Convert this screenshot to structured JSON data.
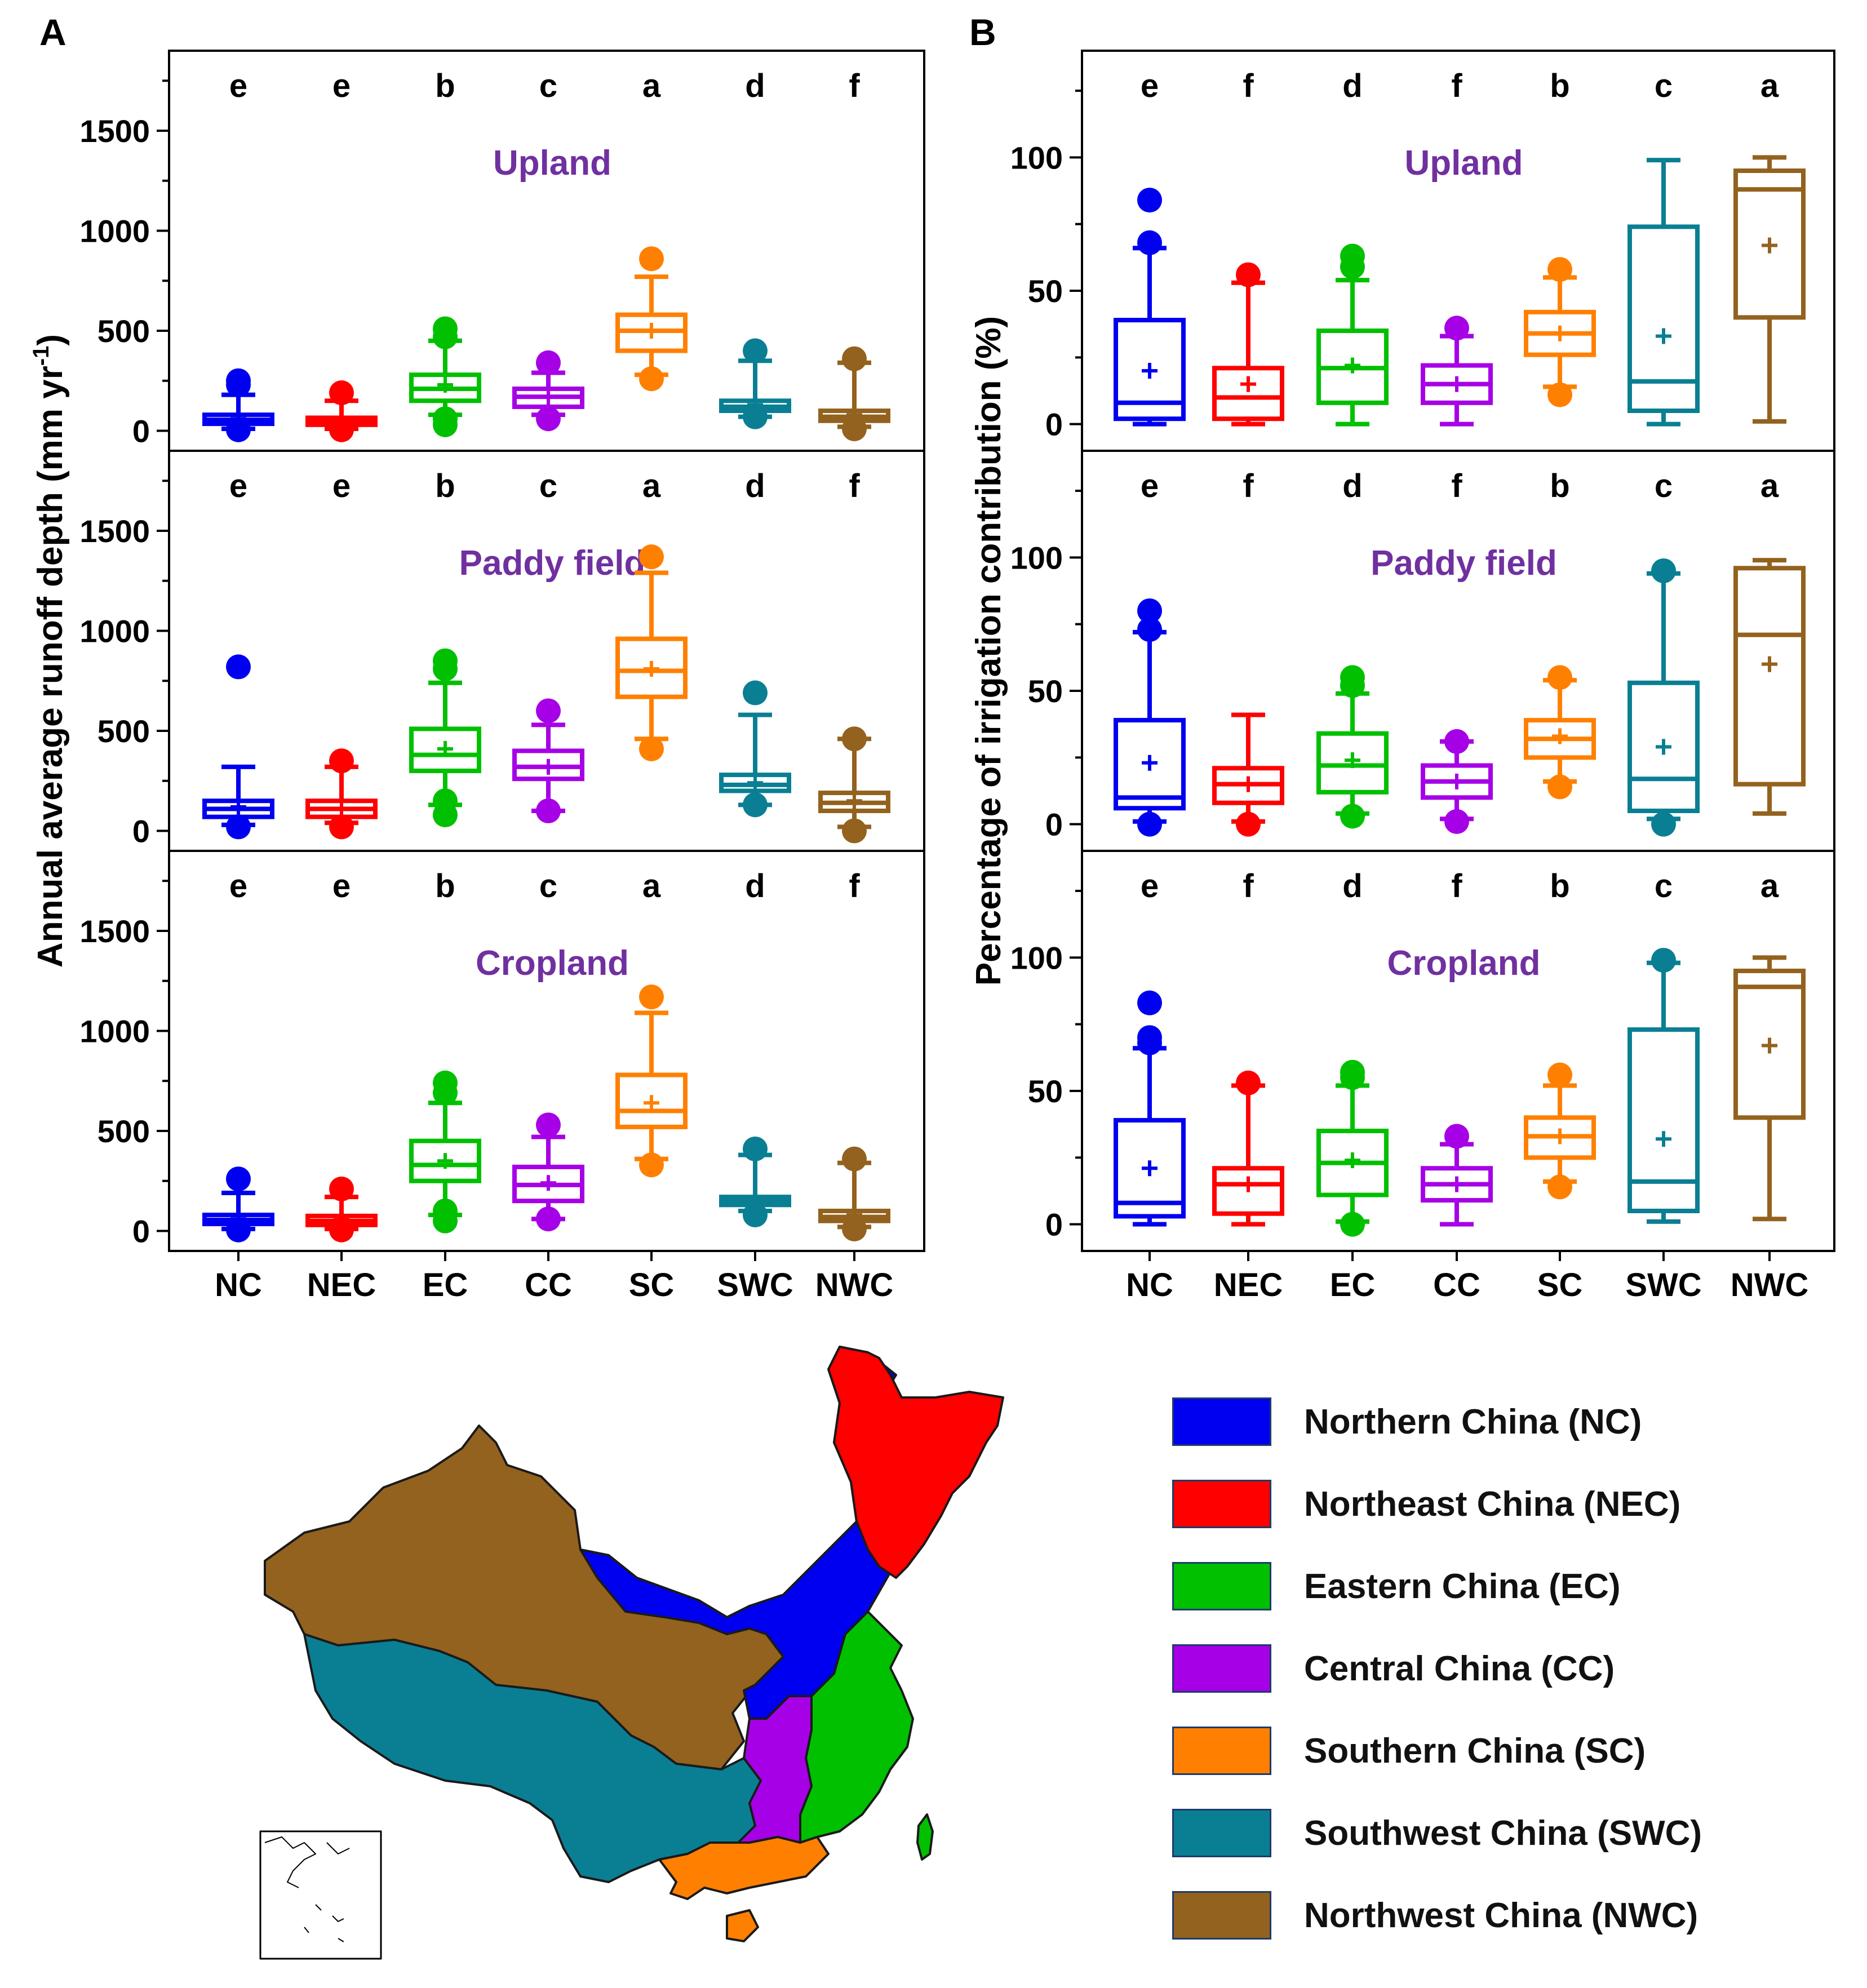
{
  "chart_data": [
    {
      "panel": "A",
      "type": "box",
      "ylabel": "Annual average runoff depth (mm yr",
      "ylabel_sup": "-1",
      "ylabel_tail": ")",
      "categories": [
        "NC",
        "NEC",
        "EC",
        "CC",
        "SC",
        "SWC",
        "NWC"
      ],
      "ylim": [
        -100,
        1900
      ],
      "yticks": [
        0,
        500,
        1000,
        1500
      ],
      "subplots": [
        {
          "title": "Upland",
          "letters": [
            "e",
            "e",
            "b",
            "c",
            "a",
            "d",
            "f"
          ],
          "boxes": [
            {
              "min": 10,
              "q1": 35,
              "median": 55,
              "q3": 80,
              "max": 180,
              "mean": 60,
              "outliers": [
                5,
                230,
                250
              ]
            },
            {
              "min": 10,
              "q1": 30,
              "median": 45,
              "q3": 65,
              "max": 150,
              "mean": 55,
              "outliers": [
                5,
                190
              ]
            },
            {
              "min": 80,
              "q1": 150,
              "median": 210,
              "q3": 280,
              "max": 450,
              "mean": 230,
              "outliers": [
                30,
                60,
                470,
                510
              ]
            },
            {
              "min": 80,
              "q1": 120,
              "median": 170,
              "q3": 210,
              "max": 290,
              "mean": 170,
              "outliers": [
                60,
                340
              ]
            },
            {
              "min": 280,
              "q1": 400,
              "median": 500,
              "q3": 580,
              "max": 770,
              "mean": 500,
              "outliers": [
                260,
                860
              ]
            },
            {
              "min": 70,
              "q1": 100,
              "median": 120,
              "q3": 150,
              "max": 350,
              "mean": 130,
              "outliers": [
                70,
                400
              ]
            },
            {
              "min": 20,
              "q1": 50,
              "median": 70,
              "q3": 100,
              "max": 340,
              "mean": 80,
              "outliers": [
                10,
                360
              ]
            }
          ]
        },
        {
          "title": "Paddy field",
          "letters": [
            "e",
            "e",
            "b",
            "c",
            "a",
            "d",
            "f"
          ],
          "boxes": [
            {
              "min": 30,
              "q1": 70,
              "median": 110,
              "q3": 150,
              "max": 320,
              "mean": 120,
              "outliers": [
                20,
                820
              ]
            },
            {
              "min": 40,
              "q1": 70,
              "median": 110,
              "q3": 150,
              "max": 320,
              "mean": 110,
              "outliers": [
                20,
                350
              ]
            },
            {
              "min": 130,
              "q1": 300,
              "median": 380,
              "q3": 510,
              "max": 740,
              "mean": 410,
              "outliers": [
                80,
                150,
                810,
                850
              ]
            },
            {
              "min": 100,
              "q1": 260,
              "median": 320,
              "q3": 400,
              "max": 530,
              "mean": 320,
              "outliers": [
                100,
                600
              ]
            },
            {
              "min": 460,
              "q1": 670,
              "median": 800,
              "q3": 960,
              "max": 1290,
              "mean": 810,
              "outliers": [
                410,
                1370
              ]
            },
            {
              "min": 130,
              "q1": 200,
              "median": 230,
              "q3": 280,
              "max": 580,
              "mean": 240,
              "outliers": [
                130,
                690
              ]
            },
            {
              "min": 20,
              "q1": 100,
              "median": 140,
              "q3": 190,
              "max": 460,
              "mean": 150,
              "outliers": [
                0,
                460
              ]
            }
          ]
        },
        {
          "title": "Cropland",
          "letters": [
            "e",
            "e",
            "b",
            "c",
            "a",
            "d",
            "f"
          ],
          "boxes": [
            {
              "min": 10,
              "q1": 35,
              "median": 55,
              "q3": 80,
              "max": 190,
              "mean": 60,
              "outliers": [
                5,
                260
              ]
            },
            {
              "min": 10,
              "q1": 30,
              "median": 50,
              "q3": 75,
              "max": 170,
              "mean": 55,
              "outliers": [
                5,
                210
              ]
            },
            {
              "min": 80,
              "q1": 250,
              "median": 330,
              "q3": 450,
              "max": 640,
              "mean": 350,
              "outliers": [
                50,
                100,
                690,
                740
              ]
            },
            {
              "min": 60,
              "q1": 150,
              "median": 230,
              "q3": 320,
              "max": 470,
              "mean": 240,
              "outliers": [
                60,
                530
              ]
            },
            {
              "min": 360,
              "q1": 520,
              "median": 600,
              "q3": 780,
              "max": 1090,
              "mean": 640,
              "outliers": [
                330,
                1170
              ]
            },
            {
              "min": 100,
              "q1": 130,
              "median": 150,
              "q3": 170,
              "max": 380,
              "mean": 150,
              "outliers": [
                80,
                410
              ]
            },
            {
              "min": 20,
              "q1": 50,
              "median": 70,
              "q3": 100,
              "max": 340,
              "mean": 80,
              "outliers": [
                10,
                360
              ]
            }
          ]
        }
      ]
    },
    {
      "panel": "B",
      "type": "box",
      "ylabel": "Percentage of irrigation contribution (%)",
      "categories": [
        "NC",
        "NEC",
        "EC",
        "CC",
        "SC",
        "SWC",
        "NWC"
      ],
      "ylim": [
        -10,
        140
      ],
      "yticks": [
        0,
        50,
        100
      ],
      "subplots": [
        {
          "title": "Upland",
          "letters": [
            "e",
            "f",
            "d",
            "f",
            "b",
            "c",
            "a"
          ],
          "boxes": [
            {
              "min": 0,
              "q1": 2,
              "median": 8,
              "q3": 39,
              "max": 66,
              "mean": 20,
              "outliers": [
                68,
                84
              ]
            },
            {
              "min": 0,
              "q1": 2,
              "median": 10,
              "q3": 21,
              "max": 53,
              "mean": 15,
              "outliers": [
                56
              ]
            },
            {
              "min": 0,
              "q1": 8,
              "median": 21,
              "q3": 35,
              "max": 54,
              "mean": 22,
              "outliers": [
                59,
                63
              ]
            },
            {
              "min": 0,
              "q1": 8,
              "median": 15,
              "q3": 22,
              "max": 33,
              "mean": 15,
              "outliers": [
                36
              ]
            },
            {
              "min": 14,
              "q1": 26,
              "median": 34,
              "q3": 42,
              "max": 55,
              "mean": 34,
              "outliers": [
                11,
                58
              ]
            },
            {
              "min": 0,
              "q1": 5,
              "median": 16,
              "q3": 74,
              "max": 99,
              "mean": 33,
              "outliers": []
            },
            {
              "min": 1,
              "q1": 40,
              "median": 88,
              "q3": 95,
              "max": 100,
              "mean": 67,
              "outliers": []
            }
          ]
        },
        {
          "title": "Paddy field",
          "letters": [
            "e",
            "f",
            "d",
            "f",
            "b",
            "c",
            "a"
          ],
          "boxes": [
            {
              "min": 1,
              "q1": 6,
              "median": 10,
              "q3": 39,
              "max": 72,
              "mean": 23,
              "outliers": [
                0,
                73,
                80
              ]
            },
            {
              "min": 1,
              "q1": 8,
              "median": 15,
              "q3": 21,
              "max": 41,
              "mean": 15,
              "outliers": [
                0
              ]
            },
            {
              "min": 4,
              "q1": 12,
              "median": 22,
              "q3": 34,
              "max": 49,
              "mean": 24,
              "outliers": [
                3,
                52,
                55
              ]
            },
            {
              "min": 2,
              "q1": 10,
              "median": 16,
              "q3": 22,
              "max": 31,
              "mean": 16,
              "outliers": [
                1,
                31
              ]
            },
            {
              "min": 16,
              "q1": 25,
              "median": 32,
              "q3": 39,
              "max": 54,
              "mean": 33,
              "outliers": [
                14,
                55
              ]
            },
            {
              "min": 2,
              "q1": 5,
              "median": 17,
              "q3": 53,
              "max": 94,
              "mean": 29,
              "outliers": [
                0,
                95
              ]
            },
            {
              "min": 4,
              "q1": 15,
              "median": 71,
              "q3": 96,
              "max": 99,
              "mean": 60,
              "outliers": []
            }
          ]
        },
        {
          "title": "Cropland",
          "letters": [
            "e",
            "f",
            "d",
            "f",
            "b",
            "c",
            "a"
          ],
          "boxes": [
            {
              "min": 0,
              "q1": 3,
              "median": 8,
              "q3": 39,
              "max": 66,
              "mean": 21,
              "outliers": [
                68,
                70,
                83
              ]
            },
            {
              "min": 0,
              "q1": 4,
              "median": 15,
              "q3": 21,
              "max": 52,
              "mean": 15,
              "outliers": [
                53
              ]
            },
            {
              "min": 1,
              "q1": 11,
              "median": 23,
              "q3": 35,
              "max": 52,
              "mean": 24,
              "outliers": [
                0,
                55,
                57
              ]
            },
            {
              "min": 0,
              "q1": 9,
              "median": 15,
              "q3": 21,
              "max": 30,
              "mean": 15,
              "outliers": [
                33
              ]
            },
            {
              "min": 16,
              "q1": 25,
              "median": 33,
              "q3": 40,
              "max": 52,
              "mean": 33,
              "outliers": [
                14,
                56
              ]
            },
            {
              "min": 1,
              "q1": 5,
              "median": 16,
              "q3": 73,
              "max": 98,
              "mean": 32,
              "outliers": [
                99
              ]
            },
            {
              "min": 2,
              "q1": 40,
              "median": 89,
              "q3": 95,
              "max": 100,
              "mean": 67,
              "outliers": []
            }
          ]
        }
      ]
    }
  ],
  "colors": {
    "NC": "#0000f0",
    "NEC": "#ff0000",
    "EC": "#00c000",
    "CC": "#a600e6",
    "SC": "#ff8000",
    "SWC": "#0a7f93",
    "NWC": "#93621e",
    "subplot_title": "#7030a0"
  },
  "legend": [
    {
      "label": "Northern China (NC)",
      "color": "#0000f0"
    },
    {
      "label": "Northeast China (NEC)",
      "color": "#ff0000"
    },
    {
      "label": "Eastern China (EC)",
      "color": "#00c000"
    },
    {
      "label": "Central China (CC)",
      "color": "#a600e6"
    },
    {
      "label": "Southern China (SC)",
      "color": "#ff8000"
    },
    {
      "label": "Southwest China (SWC)",
      "color": "#0a7f93"
    },
    {
      "label": "Northwest China (NWC)",
      "color": "#93621e"
    }
  ],
  "map": {
    "regions": [
      {
        "code": "NWC",
        "color": "#93621e"
      },
      {
        "code": "SWC",
        "color": "#0a7f93"
      },
      {
        "code": "NC",
        "color": "#0000f0"
      },
      {
        "code": "NEC",
        "color": "#ff0000"
      },
      {
        "code": "EC",
        "color": "#00c000"
      },
      {
        "code": "CC",
        "color": "#a600e6"
      },
      {
        "code": "SC",
        "color": "#ff8000"
      }
    ]
  }
}
